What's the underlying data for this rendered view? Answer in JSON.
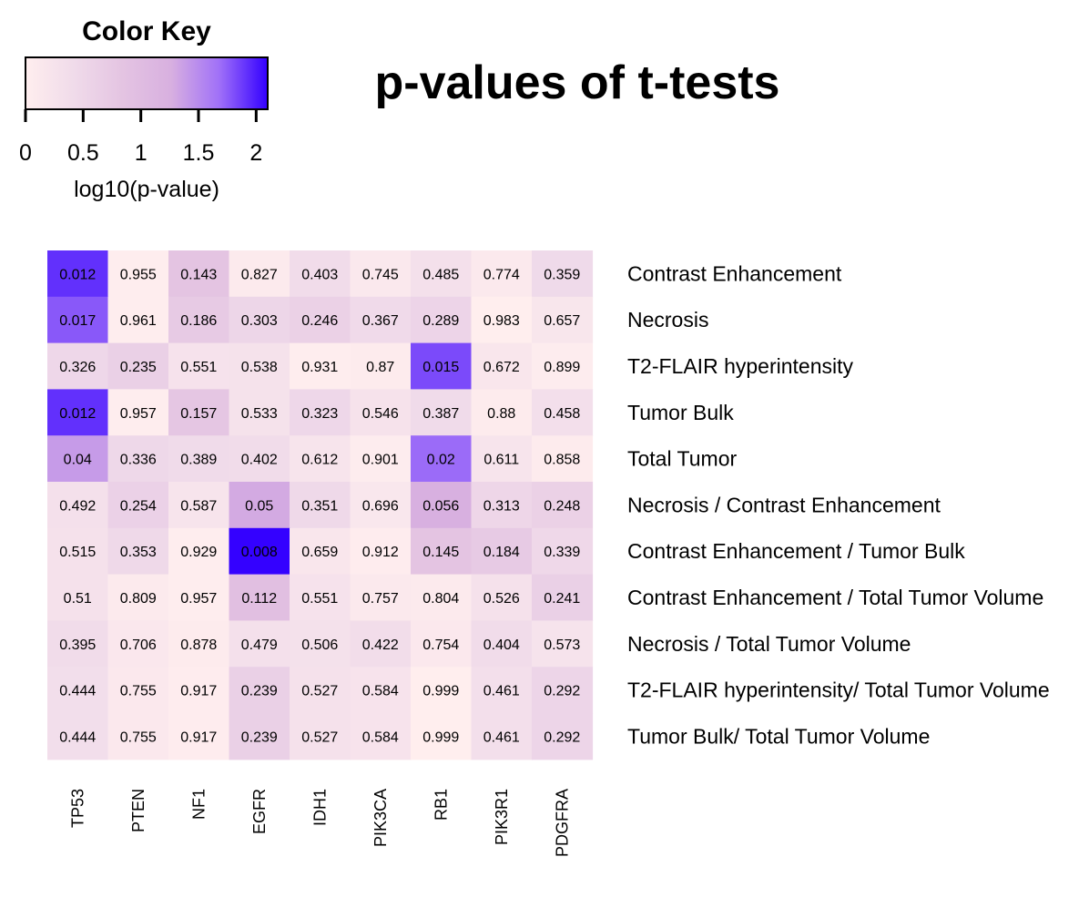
{
  "chart_data": {
    "type": "heatmap",
    "title": "p-values of t-tests",
    "color_key": {
      "title": "Color Key",
      "xlabel": "log10(p-value)",
      "ticks": [
        0,
        0.5,
        1,
        1.5,
        2
      ],
      "tick_labels": [
        "0",
        "0.5",
        "1",
        "1.5",
        "2"
      ],
      "range": [
        0,
        2.1
      ],
      "colors": [
        "#ffeeee",
        "#f0dbea",
        "#e4c4e2",
        "#d8b0e0",
        "#a070f8",
        "#3300ff"
      ]
    },
    "columns": [
      "TP53",
      "PTEN",
      "NF1",
      "EGFR",
      "IDH1",
      "PIK3CA",
      "RB1",
      "PIK3R1",
      "PDGFRA"
    ],
    "rows": [
      "Contrast Enhancement",
      "Necrosis",
      "T2-FLAIR hyperintensity",
      "Tumor Bulk",
      "Total Tumor",
      "Necrosis / Contrast Enhancement",
      "Contrast Enhancement / Tumor Bulk",
      "Contrast Enhancement / Total Tumor Volume",
      "Necrosis / Total Tumor Volume",
      "T2-FLAIR hyperintensity/ Total Tumor Volume",
      "Tumor Bulk/ Total Tumor Volume"
    ],
    "values": [
      [
        "0.012",
        "0.955",
        "0.143",
        "0.827",
        "0.403",
        "0.745",
        "0.485",
        "0.774",
        "0.359"
      ],
      [
        "0.017",
        "0.961",
        "0.186",
        "0.303",
        "0.246",
        "0.367",
        "0.289",
        "0.983",
        "0.657"
      ],
      [
        "0.326",
        "0.235",
        "0.551",
        "0.538",
        "0.931",
        "0.87",
        "0.015",
        "0.672",
        "0.899"
      ],
      [
        "0.012",
        "0.957",
        "0.157",
        "0.533",
        "0.323",
        "0.546",
        "0.387",
        "0.88",
        "0.458"
      ],
      [
        "0.04",
        "0.336",
        "0.389",
        "0.402",
        "0.612",
        "0.901",
        "0.02",
        "0.611",
        "0.858"
      ],
      [
        "0.492",
        "0.254",
        "0.587",
        "0.05",
        "0.351",
        "0.696",
        "0.056",
        "0.313",
        "0.248"
      ],
      [
        "0.515",
        "0.353",
        "0.929",
        "0.008",
        "0.659",
        "0.912",
        "0.145",
        "0.184",
        "0.339"
      ],
      [
        "0.51",
        "0.809",
        "0.957",
        "0.112",
        "0.551",
        "0.757",
        "0.804",
        "0.526",
        "0.241"
      ],
      [
        "0.395",
        "0.706",
        "0.878",
        "0.479",
        "0.506",
        "0.422",
        "0.754",
        "0.404",
        "0.573"
      ],
      [
        "0.444",
        "0.755",
        "0.917",
        "0.239",
        "0.527",
        "0.584",
        "0.999",
        "0.461",
        "0.292"
      ],
      [
        "0.444",
        "0.755",
        "0.917",
        "0.239",
        "0.527",
        "0.584",
        "0.999",
        "0.461",
        "0.292"
      ]
    ]
  }
}
